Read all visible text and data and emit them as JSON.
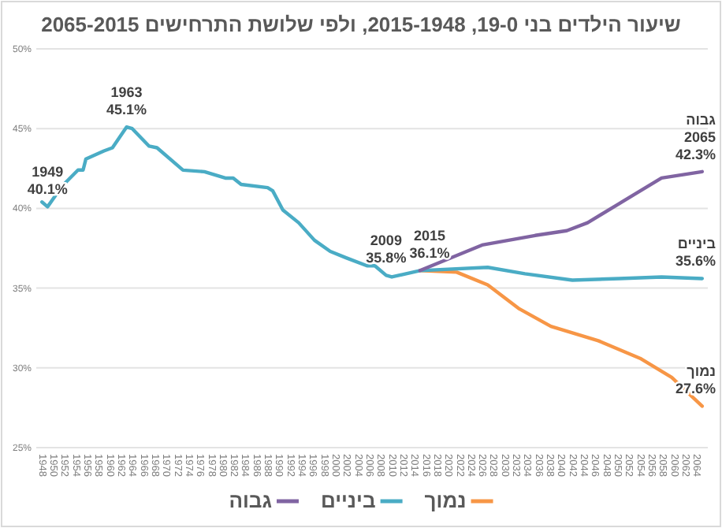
{
  "chart_data": {
    "type": "line",
    "title": "שיעור הילדים בני 19-0, 2015-1948, ולפי שלושת התרחישים 2065-2015",
    "xlim": [
      1947,
      2066
    ],
    "xticks": [
      1948,
      1950,
      1952,
      1954,
      1956,
      1958,
      1960,
      1962,
      1964,
      1966,
      1968,
      1970,
      1972,
      1974,
      1976,
      1978,
      1980,
      1982,
      1984,
      1986,
      1988,
      1990,
      1992,
      1994,
      1996,
      1998,
      2000,
      2002,
      2004,
      2006,
      2008,
      2010,
      2012,
      2014,
      2016,
      2018,
      2020,
      2022,
      2024,
      2026,
      2028,
      2030,
      2032,
      2034,
      2036,
      2038,
      2040,
      2042,
      2044,
      2046,
      2048,
      2050,
      2052,
      2054,
      2056,
      2058,
      2060,
      2062,
      2064
    ],
    "ylim": [
      25,
      50
    ],
    "yticks": [
      {
        "value": 25,
        "label": "25%"
      },
      {
        "value": 30,
        "label": "30%"
      },
      {
        "value": 35,
        "label": "35%"
      },
      {
        "value": 40,
        "label": "40%"
      },
      {
        "value": 45,
        "label": "45%"
      },
      {
        "value": 50,
        "label": "50%"
      }
    ],
    "grid": "y",
    "legend": "bottom",
    "series": [
      {
        "name": "נמוך",
        "color": "#f79646",
        "x": [
          2015,
          2021.5,
          2027,
          2032.6,
          2038.2,
          2046.6,
          2054,
          2059.6,
          2065
        ],
        "values": [
          36.1,
          36.0,
          35.2,
          33.7,
          32.6,
          31.7,
          30.6,
          29.4,
          27.6
        ]
      },
      {
        "name": "ביניים",
        "color": "#4aacc5",
        "x": [
          1948,
          1949,
          1951.6,
          1954.4,
          1955.3,
          1955.8,
          1959,
          1960.5,
          1963,
          1964,
          1967,
          1968.4,
          1973,
          1976.8,
          1980.5,
          1981.9,
          1983.3,
          1988,
          1988.9,
          1990.7,
          1993.5,
          1996.3,
          1999.1,
          2001.9,
          2005.6,
          2007,
          2009,
          2010,
          2015,
          2027,
          2033.6,
          2042,
          2050.3,
          2057.8,
          2065
        ],
        "values": [
          40.4,
          40.1,
          41.4,
          42.4,
          42.4,
          43.1,
          43.6,
          43.8,
          45.1,
          45.0,
          43.9,
          43.8,
          42.4,
          42.3,
          41.9,
          41.9,
          41.5,
          41.3,
          41.1,
          39.9,
          39.1,
          38.0,
          37.3,
          36.9,
          36.4,
          36.4,
          35.8,
          35.7,
          36.1,
          36.3,
          35.9,
          35.5,
          35.6,
          35.7,
          35.6
        ]
      },
      {
        "name": "גבוה",
        "color": "#8064a2",
        "x": [
          2015,
          2026,
          2035.4,
          2041,
          2044.7,
          2050.3,
          2057.8,
          2065
        ],
        "values": [
          36.1,
          37.7,
          38.3,
          38.6,
          39.1,
          40.3,
          41.9,
          42.3
        ]
      }
    ],
    "annotations": [
      {
        "text": "1949\n40.1%",
        "x": 1949,
        "y": 40.1
      },
      {
        "text": "1963\n45.1%",
        "x": 1963,
        "y": 45.1
      },
      {
        "text": "2009\n35.8%",
        "x": 2009,
        "y": 35.8
      },
      {
        "text": "2015\n36.1%",
        "x": 2015,
        "y": 36.1
      },
      {
        "text": "גבוה\n2065\n42.3%",
        "x": 2065,
        "y": 42.3
      },
      {
        "text": "ביניים\n35.6%",
        "x": 2065,
        "y": 35.6
      },
      {
        "text": "נמוך\n27.6%",
        "x": 2065,
        "y": 27.6
      }
    ]
  }
}
